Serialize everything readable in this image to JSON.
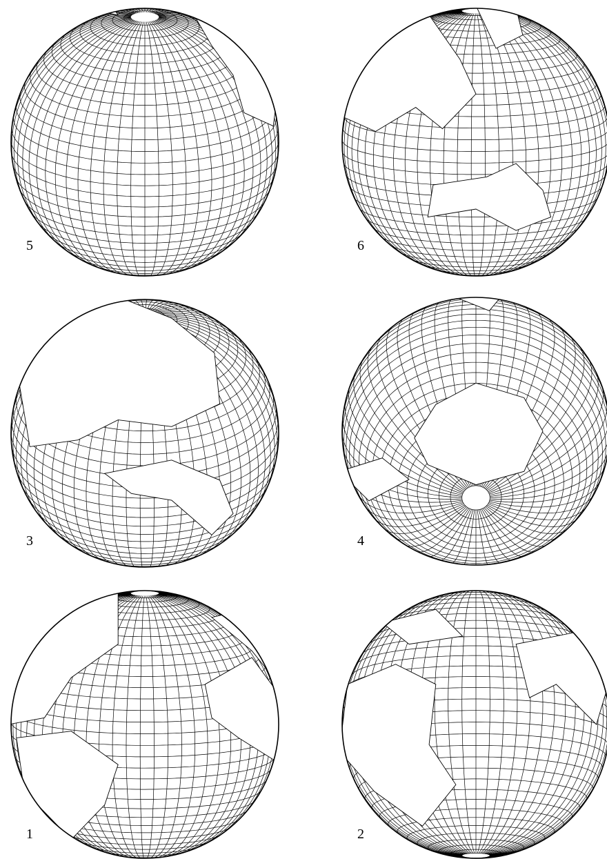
{
  "panels": [
    {
      "label": "5"
    },
    {
      "label": "6"
    },
    {
      "label": "3"
    },
    {
      "label": "4"
    },
    {
      "label": "1"
    },
    {
      "label": "2"
    }
  ]
}
